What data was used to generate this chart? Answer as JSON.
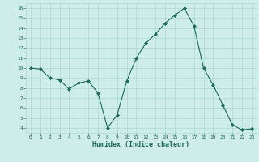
{
  "x": [
    0,
    1,
    2,
    3,
    4,
    5,
    6,
    7,
    8,
    9,
    10,
    11,
    12,
    13,
    14,
    15,
    16,
    17,
    18,
    19,
    20,
    21,
    22,
    23
  ],
  "y": [
    10.0,
    9.9,
    9.0,
    8.8,
    7.9,
    8.5,
    8.7,
    7.5,
    4.0,
    5.3,
    8.7,
    11.0,
    12.5,
    13.4,
    14.5,
    15.3,
    16.0,
    14.2,
    10.0,
    8.3,
    6.3,
    4.3,
    3.8,
    3.9
  ],
  "xlim": [
    -0.5,
    23.5
  ],
  "ylim": [
    3.5,
    16.5
  ],
  "yticks": [
    4,
    5,
    6,
    7,
    8,
    9,
    10,
    11,
    12,
    13,
    14,
    15,
    16
  ],
  "xticks": [
    0,
    1,
    2,
    3,
    4,
    5,
    6,
    7,
    8,
    9,
    10,
    11,
    12,
    13,
    14,
    15,
    16,
    17,
    18,
    19,
    20,
    21,
    22,
    23
  ],
  "xlabel": "Humidex (Indice chaleur)",
  "line_color": "#1a6b5a",
  "marker": "D",
  "marker_size": 2.0,
  "bg_color": "#ceecea",
  "grid_color": "#aed8d4",
  "font_color": "#1a6b5a"
}
